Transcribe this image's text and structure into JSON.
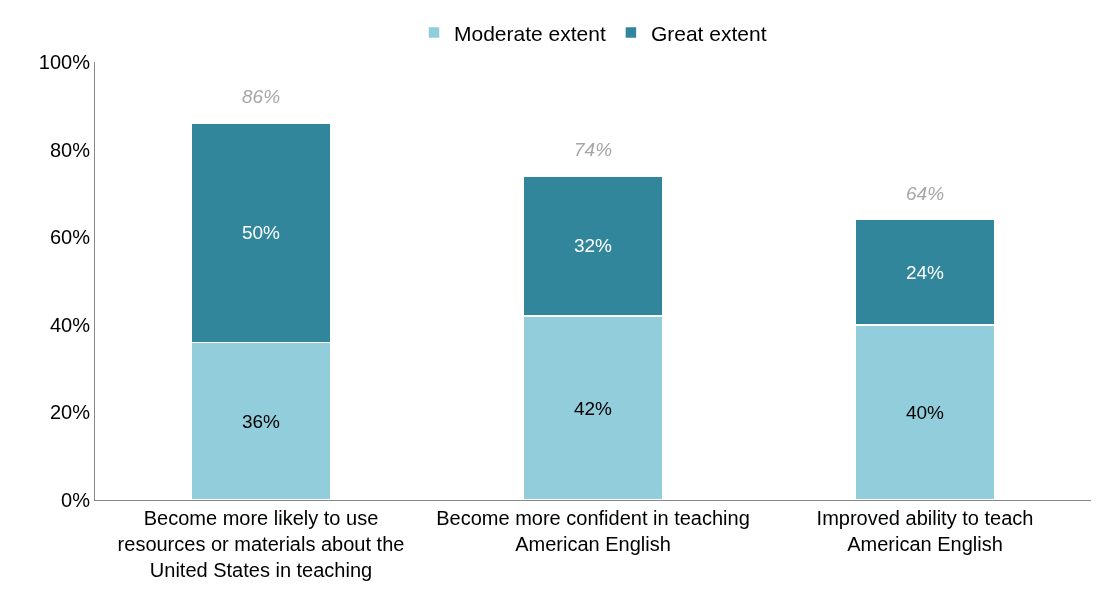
{
  "chart_data": {
    "type": "bar",
    "stacked": true,
    "categories": [
      "Become more likely to use resources or materials about the United States in teaching",
      "Become more confident in teaching American English",
      "Improved ability to teach American English"
    ],
    "series": [
      {
        "name": "Moderate extent",
        "color": "#92cddc",
        "values": [
          36,
          42,
          40
        ],
        "value_labels": [
          "36%",
          "42%",
          "40%"
        ]
      },
      {
        "name": "Great extent",
        "color": "#31869b",
        "values": [
          50,
          32,
          24
        ],
        "value_labels": [
          "50%",
          "32%",
          "24%"
        ]
      }
    ],
    "totals": [
      "86%",
      "74%",
      "64%"
    ],
    "ylim": [
      0,
      100
    ],
    "yticks": [
      {
        "value": 0,
        "label": "0%"
      },
      {
        "value": 20,
        "label": "20%"
      },
      {
        "value": 40,
        "label": "40%"
      },
      {
        "value": 60,
        "label": "60%"
      },
      {
        "value": 80,
        "label": "80%"
      },
      {
        "value": 100,
        "label": "100%"
      }
    ],
    "grid": false,
    "legend": "top"
  }
}
